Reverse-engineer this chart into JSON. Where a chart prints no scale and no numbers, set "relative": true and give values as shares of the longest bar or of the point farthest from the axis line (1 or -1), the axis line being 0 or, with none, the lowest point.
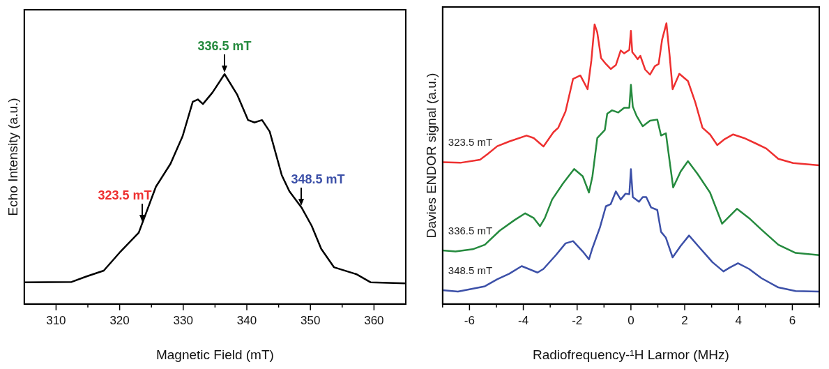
{
  "chart_data": [
    {
      "type": "line",
      "xlabel": "Magnetic Field (mT)",
      "ylabel": "Echo Intensity (a.u.)",
      "relative": true,
      "xlim": [
        305,
        365
      ],
      "xticks": [
        310,
        {
          "value": 315,
          "label": null
        },
        320,
        {
          "value": 325,
          "label": null
        },
        330,
        {
          "value": 335,
          "label": null
        },
        340,
        {
          "value": 345,
          "label": null
        },
        350,
        {
          "value": 355,
          "label": null
        },
        360
      ],
      "series": [
        {
          "color": "#000000",
          "x": [
            305,
            312.45,
            314.8,
            317.5,
            320.2,
            323.0,
            325.7,
            328.0,
            329.9,
            331.5,
            332.3,
            333.1,
            334.6,
            336.5,
            338.5,
            340.2,
            341.2,
            342.4,
            343.6,
            345.5,
            346.7,
            348.6,
            350.2,
            351.7,
            353.7,
            357.2,
            359.5,
            365
          ],
          "values": [
            0.094,
            0.096,
            0.12,
            0.145,
            0.23,
            0.31,
            0.51,
            0.61,
            0.73,
            0.88,
            0.89,
            0.87,
            0.92,
            1,
            0.91,
            0.8,
            0.79,
            0.8,
            0.75,
            0.56,
            0.49,
            0.42,
            0.34,
            0.24,
            0.16,
            0.13,
            0.094,
            0.09
          ]
        }
      ],
      "annotations": [
        {
          "text": "323.5 mT",
          "x": 323.5,
          "y": 0.35
        },
        {
          "text": "336.5 mT",
          "x": 336.5,
          "y": 1
        },
        {
          "text": "348.5 mT",
          "x": 348.5,
          "y": 0.42
        }
      ]
    },
    {
      "type": "line",
      "xlabel": "Radiofrequency-¹H Larmor (MHz)",
      "ylabel": "Davies ENDOR signal (a.u.)",
      "relative": true,
      "xlim": [
        -7,
        7
      ],
      "xticks": [
        {
          "value": -7,
          "label": null
        },
        -6,
        {
          "value": -5,
          "label": null
        },
        -4,
        {
          "value": -3,
          "label": null
        },
        -2,
        {
          "value": -1,
          "label": null
        },
        0,
        {
          "value": 1,
          "label": null
        },
        2,
        {
          "value": 3,
          "label": null
        },
        4,
        {
          "value": 5,
          "label": null
        },
        6,
        {
          "value": 7,
          "label": null
        }
      ],
      "series": [
        {
          "name": "323.5 mT",
          "color": "#ee3030",
          "x": [
            -7,
            -6.34,
            -5.61,
            -5.34,
            -4.97,
            -4.52,
            -3.88,
            -3.61,
            -3.25,
            -2.88,
            -2.7,
            -2.43,
            -2.15,
            -1.88,
            -1.61,
            -1.47,
            -1.35,
            -1.25,
            -1.11,
            -0.93,
            -0.75,
            -0.56,
            -0.38,
            -0.25,
            -0.06,
            0,
            0.05,
            0.16,
            0.25,
            0.35,
            0.53,
            0.71,
            0.89,
            1.03,
            1.16,
            1.32,
            1.44,
            1.55,
            1.8,
            2.12,
            2.39,
            2.66,
            2.94,
            3.21,
            3.48,
            3.8,
            4.21,
            4.66,
            5.03,
            5.48,
            6.03,
            7
          ],
          "values": [
            0.505,
            0.503,
            0.514,
            0.533,
            0.562,
            0.579,
            0.6,
            0.591,
            0.561,
            0.612,
            0.628,
            0.686,
            0.802,
            0.814,
            0.765,
            0.868,
            0.996,
            0.967,
            0.876,
            0.855,
            0.837,
            0.851,
            0.903,
            0.893,
            0.905,
            0.973,
            0.897,
            0.884,
            0.872,
            0.884,
            0.835,
            0.817,
            0.847,
            0.855,
            0.942,
            1.0,
            0.884,
            0.765,
            0.82,
            0.794,
            0.719,
            0.628,
            0.604,
            0.566,
            0.587,
            0.604,
            0.591,
            0.571,
            0.554,
            0.517,
            0.502,
            0.494
          ]
        },
        {
          "name": "336.5 mT",
          "color": "#258a3e",
          "x": [
            -7,
            -6.52,
            -5.88,
            -5.43,
            -4.88,
            -4.34,
            -3.93,
            -3.61,
            -3.38,
            -3.2,
            -2.93,
            -2.52,
            -2.11,
            -1.79,
            -1.56,
            -1.43,
            -1.25,
            -0.97,
            -0.88,
            -0.7,
            -0.47,
            -0.25,
            -0.06,
            0,
            0.07,
            0.21,
            0.44,
            0.71,
            0.98,
            1.12,
            1.3,
            1.57,
            1.85,
            2.12,
            2.48,
            2.94,
            3.39,
            3.94,
            4.39,
            4.85,
            5.48,
            6.12,
            7
          ],
          "values": [
            0.191,
            0.187,
            0.195,
            0.211,
            0.261,
            0.298,
            0.323,
            0.306,
            0.277,
            0.306,
            0.372,
            0.43,
            0.481,
            0.455,
            0.397,
            0.455,
            0.591,
            0.62,
            0.678,
            0.69,
            0.682,
            0.699,
            0.699,
            0.781,
            0.703,
            0.67,
            0.633,
            0.653,
            0.657,
            0.6,
            0.608,
            0.415,
            0.472,
            0.509,
            0.463,
            0.397,
            0.286,
            0.339,
            0.306,
            0.265,
            0.211,
            0.182,
            0.174
          ]
        },
        {
          "name": "348.5 mT",
          "color": "#3c50a8",
          "x": [
            -7,
            -6.43,
            -5.43,
            -4.97,
            -4.52,
            -4.06,
            -3.47,
            -3.25,
            -2.79,
            -2.43,
            -2.15,
            -1.79,
            -1.56,
            -1.43,
            -1.15,
            -0.93,
            -0.75,
            -0.56,
            -0.38,
            -0.2,
            -0.06,
            0,
            0.07,
            0.3,
            0.44,
            0.57,
            0.75,
            0.98,
            1.12,
            1.3,
            1.55,
            1.85,
            2.16,
            2.57,
            3.03,
            3.44,
            3.66,
            3.98,
            4.39,
            4.85,
            5.48,
            6.12,
            7
          ],
          "values": [
            0.049,
            0.044,
            0.063,
            0.088,
            0.108,
            0.135,
            0.112,
            0.125,
            0.174,
            0.216,
            0.224,
            0.187,
            0.159,
            0.199,
            0.273,
            0.348,
            0.356,
            0.401,
            0.372,
            0.393,
            0.391,
            0.48,
            0.381,
            0.364,
            0.381,
            0.381,
            0.344,
            0.335,
            0.257,
            0.236,
            0.166,
            0.207,
            0.244,
            0.199,
            0.149,
            0.116,
            0.129,
            0.145,
            0.125,
            0.092,
            0.059,
            0.046,
            0.044
          ]
        }
      ]
    }
  ]
}
